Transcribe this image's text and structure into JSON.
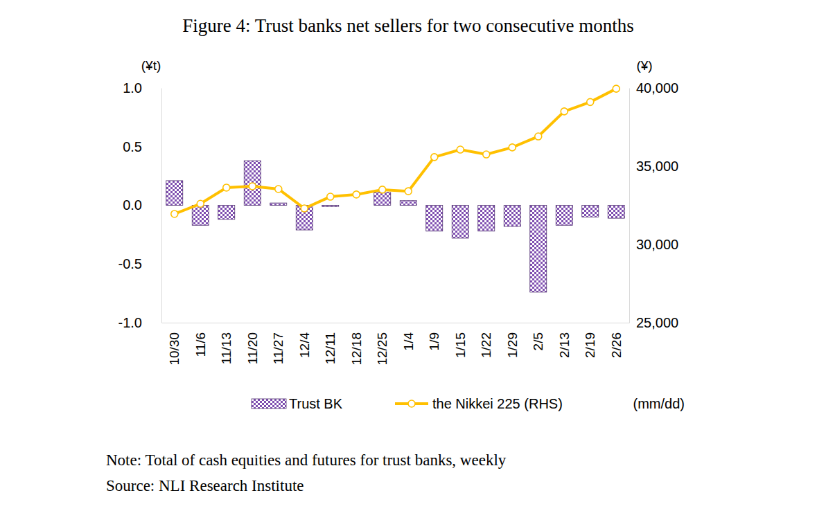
{
  "chart_data": {
    "type": "bar",
    "title": "Figure 4: Trust banks net sellers for two consecutive months",
    "y_label": "(¥t)",
    "y2_label": "(¥)",
    "x_label": "(mm/dd)",
    "categories": [
      "10/30",
      "11/6",
      "11/13",
      "11/20",
      "11/27",
      "12/4",
      "12/11",
      "12/18",
      "12/25",
      "1/4",
      "1/9",
      "1/15",
      "1/22",
      "1/29",
      "2/5",
      "2/13",
      "2/19",
      "2/26"
    ],
    "series": [
      {
        "name": "Trust BK",
        "type": "bar",
        "color": "#7f4fb0",
        "values": [
          0.21,
          -0.17,
          -0.12,
          0.38,
          0.02,
          -0.21,
          -0.01,
          0.0,
          0.11,
          0.04,
          -0.22,
          -0.28,
          -0.22,
          -0.18,
          -0.74,
          -0.17,
          -0.1,
          -0.11
        ]
      },
      {
        "name": "the Nikkei 225 (RHS)",
        "type": "line",
        "axis": "y2",
        "color": "#ffc000",
        "marker": "circle",
        "values": [
          31950,
          32600,
          33630,
          33720,
          33540,
          32300,
          33050,
          33190,
          33500,
          33400,
          35580,
          36060,
          35750,
          36200,
          36900,
          38500,
          39100,
          39950
        ]
      }
    ],
    "ylim": [
      -1.0,
      1.0
    ],
    "yticks": [
      {
        "value": -1.0,
        "label": "-1.0"
      },
      -0.5,
      {
        "value": 0.0,
        "label": "0.0"
      },
      0.5,
      {
        "value": 1.0,
        "label": "1.0"
      }
    ],
    "y2lim": [
      25000,
      40000
    ],
    "y2ticks": [
      {
        "value": 25000,
        "label": "25,000"
      },
      {
        "value": 30000,
        "label": "30,000"
      },
      {
        "value": 35000,
        "label": "35,000"
      },
      {
        "value": 40000,
        "label": "40,000"
      }
    ],
    "grid": false,
    "legend": "bottom",
    "notes": [
      "Note: Total of cash equities and futures for trust banks, weekly",
      "Source: NLI Research Institute"
    ]
  }
}
